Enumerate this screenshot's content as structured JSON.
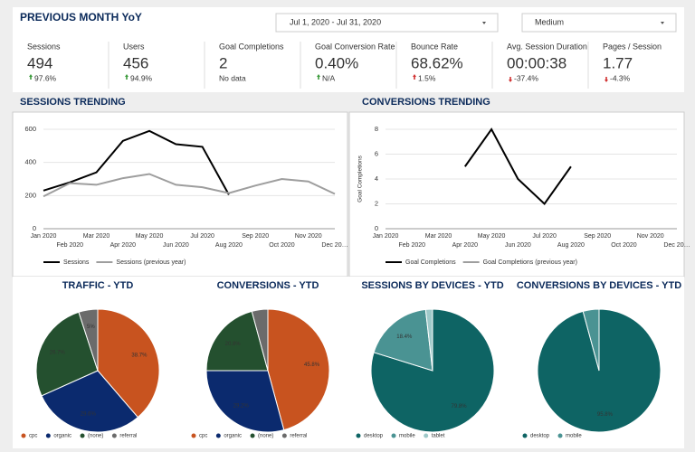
{
  "header": {
    "title": "PREVIOUS MONTH YoY",
    "date_range": "Jul 1, 2020 - Jul 31, 2020",
    "filter": "Medium"
  },
  "scorecards": [
    {
      "label": "Sessions",
      "value": "494",
      "change": "97.6%",
      "trend": "up",
      "change_color": "#3a9a3a"
    },
    {
      "label": "Users",
      "value": "456",
      "change": "94.9%",
      "trend": "up",
      "change_color": "#3a9a3a"
    },
    {
      "label": "Goal Completions",
      "value": "2",
      "change": "No data",
      "change_color": "#777777"
    },
    {
      "label": "Goal Conversion Rate",
      "value": "0.40%",
      "change": "N/A",
      "trend": "up",
      "change_color": "#3a9a3a"
    },
    {
      "label": "Bounce Rate",
      "value": "68.62%",
      "change": "1.5%",
      "trend": "up",
      "change_color": "#d03030"
    },
    {
      "label": "Avg. Session Duration",
      "value": "00:00:38",
      "change": "-37.4%",
      "trend": "down",
      "change_color": "#d03030"
    },
    {
      "label": "Pages / Session",
      "value": "1.77",
      "change": "-4.3%",
      "trend": "down",
      "change_color": "#d03030"
    }
  ],
  "chart_data": [
    {
      "type": "line",
      "title": "SESSIONS TRENDING",
      "categories": [
        "Jan 2020",
        "Feb 2020",
        "Mar 2020",
        "Apr 2020",
        "May 2020",
        "Jun 2020",
        "Jul 2020",
        "Aug 2020",
        "Sep 2020",
        "Oct 2020",
        "Nov 2020",
        "Dec 20…"
      ],
      "series": [
        {
          "name": "Sessions",
          "color": "#000000",
          "values": [
            230,
            280,
            340,
            530,
            590,
            510,
            494,
            205,
            null,
            null,
            null,
            null
          ]
        },
        {
          "name": "Sessions (previous year)",
          "color": "#9e9e9e",
          "values": [
            195,
            275,
            265,
            305,
            330,
            265,
            250,
            215,
            260,
            300,
            285,
            210
          ]
        }
      ],
      "ylim": [
        0,
        600
      ],
      "yticks": [
        0,
        200,
        400,
        600
      ],
      "grid": true,
      "legend": "bottom"
    },
    {
      "type": "line",
      "title": "CONVERSIONS TRENDING",
      "ylabel": "Goal Completions",
      "categories": [
        "Jan 2020",
        "Feb 2020",
        "Mar 2020",
        "Apr 2020",
        "May 2020",
        "Jun 2020",
        "Jul 2020",
        "Aug 2020",
        "Sep 2020",
        "Oct 2020",
        "Nov 2020",
        "Dec 20…"
      ],
      "series": [
        {
          "name": "Goal Completions",
          "color": "#000000",
          "values": [
            null,
            null,
            null,
            5,
            8,
            4,
            2,
            5,
            null,
            null,
            null,
            null
          ]
        },
        {
          "name": "Goal Completions (previous year)",
          "color": "#9e9e9e",
          "values": [
            null,
            null,
            null,
            null,
            null,
            null,
            null,
            null,
            null,
            null,
            null,
            null
          ]
        }
      ],
      "ylim": [
        0,
        8
      ],
      "yticks": [
        0,
        2,
        4,
        6,
        8
      ],
      "grid": true,
      "legend": "bottom"
    },
    {
      "type": "pie",
      "title": "TRAFFIC - YTD",
      "categories": [
        "cpc",
        "organic",
        "(none)",
        "referral"
      ],
      "values": [
        38.7,
        29.6,
        26.7,
        5
      ],
      "value_labels": [
        "38.7%",
        "29.6%",
        "26.7%",
        "5%"
      ],
      "colors": [
        "#c8531f",
        "#0b2a6e",
        "#24502f",
        "#6b6b6b"
      ]
    },
    {
      "type": "pie",
      "title": "CONVERSIONS - YTD",
      "categories": [
        "cpc",
        "organic",
        "(none)",
        "referral"
      ],
      "values": [
        45.8,
        29.2,
        20.8,
        4.2
      ],
      "value_labels": [
        "45.8%",
        "29.2%",
        "20.8%",
        null
      ],
      "colors": [
        "#c8531f",
        "#0b2a6e",
        "#24502f",
        "#6b6b6b"
      ]
    },
    {
      "type": "pie",
      "title": "SESSIONS BY DEVICES - YTD",
      "categories": [
        "desktop",
        "mobile",
        "tablet"
      ],
      "values": [
        79.8,
        18.4,
        1.8
      ],
      "value_labels": [
        "79.8%",
        "18.4%",
        null
      ],
      "colors": [
        "#0e6464",
        "#4a9393",
        "#9ec9c9"
      ]
    },
    {
      "type": "pie",
      "title": "CONVERSIONS BY DEVICES - YTD",
      "categories": [
        "desktop",
        "mobile"
      ],
      "values": [
        95.8,
        4.2
      ],
      "value_labels": [
        "95.8%",
        null
      ],
      "colors": [
        "#0e6464",
        "#4a9393"
      ]
    }
  ]
}
